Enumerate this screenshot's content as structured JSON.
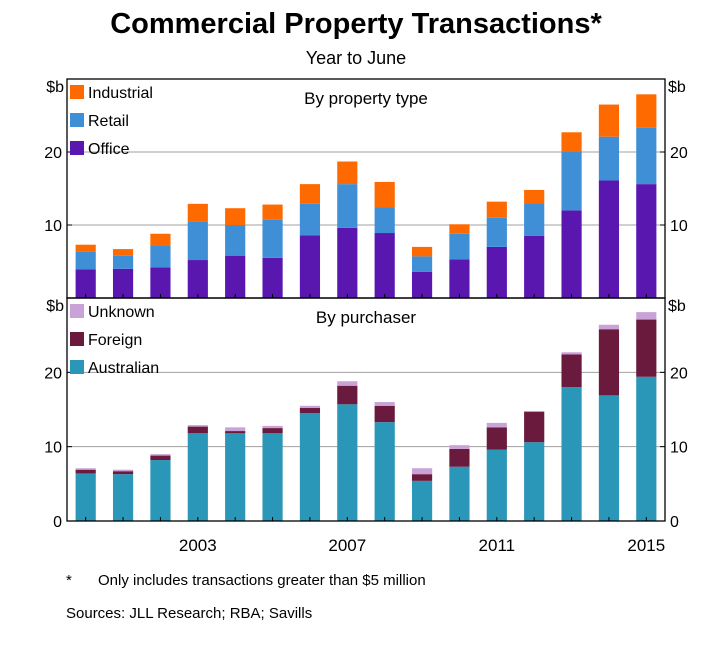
{
  "title": "Commercial Property Transactions*",
  "subtitle": "Year to June",
  "footnote": {
    "mark": "*",
    "text": "Only includes transactions greater than $5 million"
  },
  "sources": "Sources: JLL Research; RBA; Savills",
  "chart_data": [
    {
      "type": "bar",
      "stacked": true,
      "panel_title": "By property type",
      "unit_label": "$b",
      "x": [
        2000,
        2001,
        2002,
        2003,
        2004,
        2005,
        2006,
        2007,
        2008,
        2009,
        2010,
        2011,
        2012,
        2013,
        2014,
        2015
      ],
      "x_tick_labels": [
        "2003",
        "2007",
        "2011",
        "2015"
      ],
      "yticks": [
        10,
        20
      ],
      "ylim": [
        0,
        30
      ],
      "grid": true,
      "legend_position": "top-left",
      "series": [
        {
          "name": "Office",
          "color": "#5a17b0",
          "values": [
            3.9,
            4.0,
            4.2,
            5.2,
            5.8,
            5.5,
            8.6,
            9.6,
            8.9,
            3.6,
            5.3,
            7.0,
            8.5,
            12.0,
            16.1,
            15.6
          ]
        },
        {
          "name": "Retail",
          "color": "#3f8fd6",
          "values": [
            2.5,
            1.8,
            3.0,
            5.3,
            4.2,
            5.2,
            4.3,
            6.0,
            3.5,
            2.1,
            3.5,
            4.0,
            4.5,
            8.0,
            6.0,
            7.7
          ]
        },
        {
          "name": "Industrial",
          "color": "#ff6a00",
          "values": [
            0.9,
            0.9,
            1.6,
            2.4,
            2.3,
            2.1,
            2.7,
            3.1,
            3.5,
            1.3,
            1.3,
            2.2,
            1.8,
            2.7,
            4.4,
            4.6
          ]
        }
      ]
    },
    {
      "type": "bar",
      "stacked": true,
      "panel_title": "By purchaser",
      "unit_label": "$b",
      "x": [
        2000,
        2001,
        2002,
        2003,
        2004,
        2005,
        2006,
        2007,
        2008,
        2009,
        2010,
        2011,
        2012,
        2013,
        2014,
        2015
      ],
      "x_tick_labels": [
        "2003",
        "2007",
        "2011",
        "2015"
      ],
      "yticks": [
        0,
        10,
        20
      ],
      "ylim": [
        0,
        30
      ],
      "grid": true,
      "legend_position": "top-left",
      "series": [
        {
          "name": "Australian",
          "color": "#2a97b8",
          "values": [
            6.4,
            6.3,
            8.2,
            11.8,
            11.8,
            11.8,
            14.5,
            15.7,
            13.3,
            5.4,
            7.3,
            9.6,
            10.6,
            18.0,
            16.9,
            19.4
          ]
        },
        {
          "name": "Foreign",
          "color": "#6a1a3c",
          "values": [
            0.5,
            0.4,
            0.6,
            0.9,
            0.3,
            0.7,
            0.7,
            2.5,
            2.2,
            0.9,
            2.4,
            3.0,
            4.1,
            4.4,
            8.9,
            7.7
          ]
        },
        {
          "name": "Unknown",
          "color": "#c9a3d8",
          "values": [
            0.2,
            0.2,
            0.2,
            0.2,
            0.5,
            0.3,
            0.3,
            0.6,
            0.5,
            0.8,
            0.5,
            0.6,
            0.1,
            0.3,
            0.6,
            1.0
          ]
        }
      ]
    }
  ]
}
